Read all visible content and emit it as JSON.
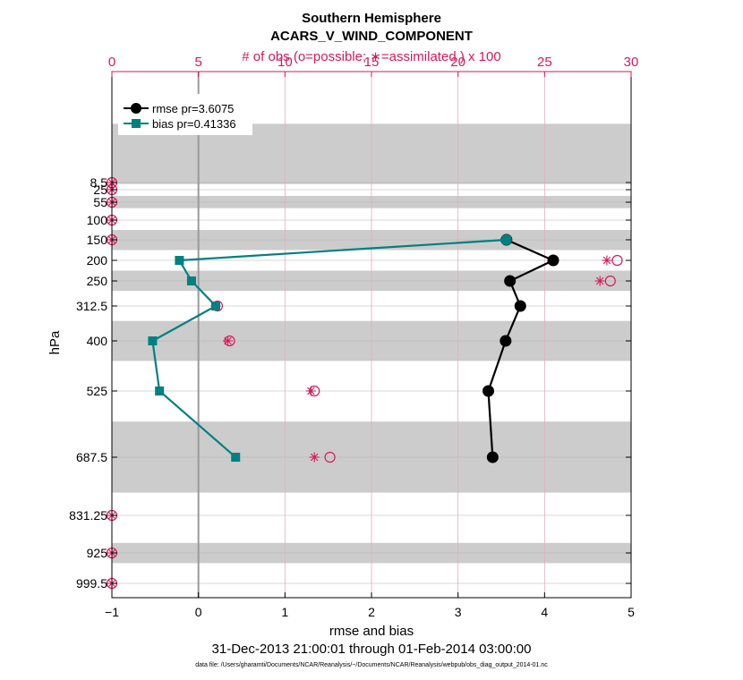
{
  "chart_data": {
    "type": "line",
    "title": "Southern Hemisphere",
    "subtitle": "ACARS_V_WIND_COMPONENT",
    "top_axis_label": "# of obs (o=possible; ∗=assimilated ) x 100",
    "xlabel": "rmse and bias",
    "ylabel": "hPa",
    "date_range": "31-Dec-2013 21:00:01 through 01-Feb-2014 03:00:00",
    "data_file": "data file: /Users/gharamti/Documents/NCAR/Reanalysis/~/Documents/NCAR/Reanalysis/webpub/obs_diag_output_2014-01.nc",
    "xlim": [
      -1,
      5
    ],
    "x_ticks": [
      -1,
      0,
      1,
      2,
      3,
      4,
      5
    ],
    "x_tick_labels": [
      "−1",
      "0",
      "1",
      "2",
      "3",
      "4",
      "5"
    ],
    "top_xlim": [
      0,
      30
    ],
    "top_ticks": [
      0,
      5,
      10,
      15,
      20,
      25,
      30
    ],
    "top_tick_labels": [
      "0",
      "5",
      "10",
      "15",
      "20",
      "25",
      "30"
    ],
    "levels": [
      8.5,
      25,
      55,
      100,
      150,
      200,
      250,
      312.5,
      400,
      525,
      687.5,
      831.25,
      925,
      999.5
    ],
    "level_labels": [
      "8.5",
      "25",
      "55",
      "100",
      "150",
      "200",
      "250",
      "312.5",
      "400",
      "525",
      "687.5",
      "831.25",
      "925",
      "999.5"
    ],
    "level_bands": [
      [
        4,
        12
      ],
      [
        40,
        70
      ],
      [
        125,
        175
      ],
      [
        225,
        275
      ],
      [
        350,
        450
      ],
      [
        600,
        775
      ],
      [
        900,
        950
      ]
    ],
    "series": [
      {
        "name": "rmse pr=3.6075",
        "color": "#000000",
        "marker": "circle",
        "levels": [
          150,
          200,
          250,
          312.5,
          400,
          525,
          687.5
        ],
        "values": [
          3.56,
          4.1,
          3.6,
          3.72,
          3.55,
          3.35,
          3.4
        ]
      },
      {
        "name": "bias pr=0.41336",
        "color": "#008080",
        "marker": "square",
        "levels": [
          150,
          200,
          250,
          312.5,
          400,
          525,
          687.5
        ],
        "values": [
          3.56,
          -0.22,
          -0.08,
          0.2,
          -0.53,
          -0.45,
          0.43
        ]
      }
    ],
    "obs_possible": {
      "levels": [
        8.5,
        25,
        55,
        100,
        150,
        200,
        250,
        312.5,
        400,
        525,
        687.5,
        831.25,
        925,
        999.5
      ],
      "values": [
        0,
        0,
        0,
        0,
        0,
        29.2,
        28.8,
        6.1,
        6.8,
        11.7,
        12.6,
        0,
        0,
        0
      ]
    },
    "obs_assimilated": {
      "levels": [
        8.5,
        25,
        55,
        100,
        150,
        200,
        250,
        312.5,
        400,
        525,
        687.5,
        831.25,
        925,
        999.5
      ],
      "values": [
        0,
        0,
        0,
        0,
        0,
        28.6,
        28.2,
        6.0,
        6.7,
        11.5,
        11.7,
        0,
        0,
        0
      ]
    }
  }
}
